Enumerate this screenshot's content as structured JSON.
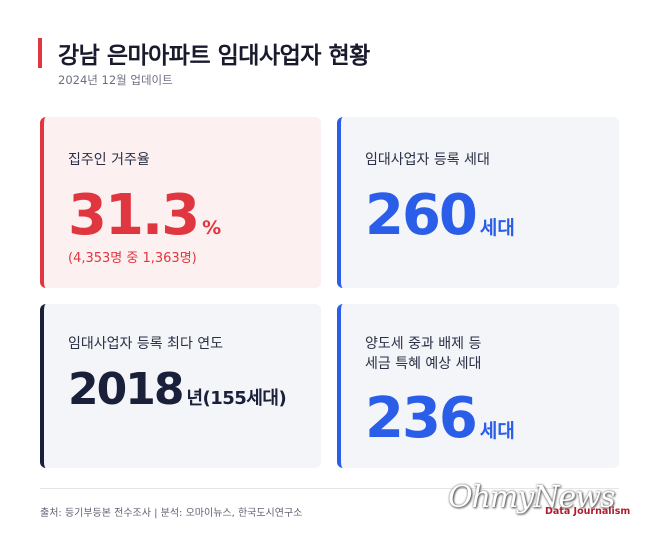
{
  "header": {
    "title": "강남 은마아파트 임대사업자 현황",
    "subtitle": "2024년 12월 업데이트"
  },
  "cards": [
    {
      "label": "집주인 거주율",
      "value": "31.3",
      "unit": "%",
      "note": "(4,353명 중 1,363명)"
    },
    {
      "label": "임대사업자 등록 세대",
      "value": "260",
      "unit": "세대"
    },
    {
      "label": "임대사업자 등록 최다 연도",
      "value": "2018",
      "unit": "년(155세대)"
    },
    {
      "label_line1": "양도세 중과 배제 등",
      "label_line2": "세금 특혜 예상 세대",
      "value": "236",
      "unit": "세대"
    }
  ],
  "footer": {
    "source": "출처: 등기부등본 전수조사 | 분석: 오마이뉴스, 한국도시연구소",
    "watermark": "OhmyNews",
    "credit": "Data Journalism"
  },
  "colors": {
    "accent_red": "#e0363f",
    "accent_blue": "#2a5de8",
    "navy": "#1a1f3a"
  }
}
